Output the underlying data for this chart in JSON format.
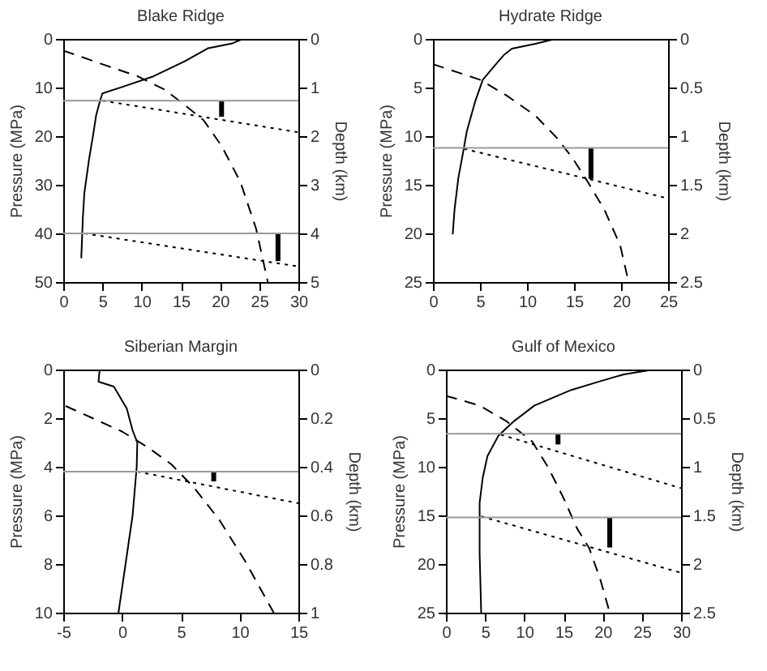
{
  "chart_data": [
    {
      "type": "line",
      "title": "Blake Ridge",
      "ylabel": "Pressure (MPa)",
      "y2label": "Depth (km)",
      "xlim": [
        0,
        30
      ],
      "xticks": [
        0,
        5,
        10,
        15,
        20,
        25,
        30
      ],
      "ylim": [
        50,
        0
      ],
      "yticks": [
        0,
        10,
        20,
        30,
        40,
        50
      ],
      "y2lim": [
        5,
        0
      ],
      "y2ticks": [
        0,
        1,
        2,
        3,
        4,
        5
      ],
      "grid": false,
      "series": [
        {
          "color": "#000000",
          "line_style": "solid",
          "x": [
            22.9,
            21.6,
            18.5,
            15.5,
            11.5,
            7.5,
            5,
            4.7,
            4.2,
            3.8,
            3.3,
            2.7,
            2.5,
            2.3
          ],
          "values": [
            0,
            0.9,
            1.9,
            4.6,
            7.7,
            9.9,
            11.2,
            12.7,
            15.7,
            19.9,
            24.7,
            31.6,
            36.9,
            45.1
          ]
        },
        {
          "color": "#000000",
          "line_style": "dashed",
          "x": [
            0,
            4.8,
            9.5,
            12.9,
            15.5,
            17.9,
            20.2,
            22.6,
            24.6,
            26.1
          ],
          "values": [
            2.4,
            5.1,
            7.7,
            10.4,
            13.6,
            16.7,
            22,
            29.4,
            39,
            50
          ]
        },
        {
          "color": "#000000",
          "line_style": "dotted",
          "x": [
            5,
            30
          ],
          "values": [
            12.7,
            19.2
          ]
        },
        {
          "color": "#000000",
          "line_style": "dotted",
          "x": [
            2.7,
            30
          ],
          "values": [
            40,
            46.8
          ]
        },
        {
          "color": "#000000",
          "line_style": "solid",
          "x": [
            20.2,
            20.2
          ],
          "values": [
            12.7,
            16
          ]
        },
        {
          "color": "#000000",
          "line_style": "solid",
          "x": [
            27.4,
            27.4
          ],
          "values": [
            40,
            45.7
          ]
        }
      ],
      "ref_lines": [
        {
          "axis": "y",
          "value": 12.7,
          "color": "#999999"
        },
        {
          "axis": "y",
          "value": 40,
          "color": "#999999"
        }
      ]
    },
    {
      "type": "line",
      "title": "Hydrate Ridge",
      "ylabel": "Pressure (MPa)",
      "y2label": "Depth (km)",
      "xlim": [
        0,
        25
      ],
      "xticks": [
        0,
        5,
        10,
        15,
        20,
        25
      ],
      "ylim": [
        25,
        0
      ],
      "yticks": [
        0,
        5,
        10,
        15,
        20,
        25
      ],
      "y2lim": [
        2.5,
        0
      ],
      "y2ticks": [
        0,
        0.5,
        1,
        1.5,
        2,
        2.5
      ],
      "grid": false,
      "series": [
        {
          "color": "#000000",
          "line_style": "solid",
          "x": [
            13,
            10.9,
            8.4,
            7.6,
            6.7,
            5.3,
            4.5,
            3.6,
            3.2,
            2.7,
            2.3,
            2.1
          ],
          "values": [
            0,
            0.5,
            1,
            1.6,
            2.6,
            4.2,
            6.4,
            9.5,
            11.7,
            14.3,
            17.5,
            20.1
          ]
        },
        {
          "color": "#000000",
          "line_style": "dashed",
          "x": [
            0,
            5,
            7.8,
            10.9,
            13.1,
            14.8,
            16.2,
            18.2,
            19.9,
            20.8
          ],
          "values": [
            2.6,
            4.2,
            5.8,
            7.9,
            10.1,
            12.2,
            14.3,
            17.5,
            21.2,
            25
          ]
        },
        {
          "color": "#000000",
          "line_style": "dotted",
          "x": [
            3.3,
            25
          ],
          "values": [
            11.3,
            16.4
          ]
        },
        {
          "color": "#000000",
          "line_style": "solid",
          "x": [
            16.8,
            16.8
          ],
          "values": [
            11.2,
            14.4
          ]
        }
      ],
      "ref_lines": [
        {
          "axis": "y",
          "value": 11.2,
          "color": "#999999"
        }
      ]
    },
    {
      "type": "line",
      "title": "Siberian Margin",
      "ylabel": "Pressure (MPa)",
      "y2label": "Depth (km)",
      "xlim": [
        -5,
        15
      ],
      "xticks": [
        -5,
        0,
        5,
        10,
        15
      ],
      "ylim": [
        10,
        0
      ],
      "yticks": [
        0,
        2,
        4,
        6,
        8,
        10
      ],
      "y2lim": [
        1,
        0
      ],
      "y2ticks": [
        0,
        0.2,
        0.4,
        0.6,
        0.8,
        1
      ],
      "grid": false,
      "series": [
        {
          "color": "#000000",
          "line_style": "solid",
          "x": [
            -1.9,
            -2,
            -0.7,
            0.4,
            0.9,
            1.3,
            1.25,
            0.9,
            0.3,
            -0.3
          ],
          "values": [
            0,
            0.5,
            0.7,
            1.6,
            2.5,
            3,
            4,
            6,
            8,
            10
          ]
        },
        {
          "color": "#000000",
          "line_style": "dashed",
          "x": [
            -4.8,
            -2.5,
            0,
            2.2,
            4.2,
            6.2,
            8.3,
            10.5,
            12.9
          ],
          "values": [
            1.5,
            2,
            2.55,
            3.2,
            3.9,
            4.9,
            6.2,
            7.9,
            10
          ]
        },
        {
          "color": "#000000",
          "line_style": "dotted",
          "x": [
            1.3,
            15
          ],
          "values": [
            4.2,
            5.5
          ]
        },
        {
          "color": "#000000",
          "line_style": "solid",
          "x": [
            7.8,
            7.8
          ],
          "values": [
            4.2,
            4.6
          ]
        }
      ],
      "ref_lines": [
        {
          "axis": "y",
          "value": 4.2,
          "color": "#999999"
        }
      ]
    },
    {
      "type": "line",
      "title": "Gulf of Mexico",
      "ylabel": "Pressure (MPa)",
      "y2label": "Depth (km)",
      "xlim": [
        0,
        30
      ],
      "xticks": [
        0,
        5,
        10,
        15,
        20,
        25,
        30
      ],
      "ylim": [
        25,
        0
      ],
      "yticks": [
        0,
        5,
        10,
        15,
        20,
        25
      ],
      "y2lim": [
        2.5,
        0
      ],
      "y2ticks": [
        0,
        0.5,
        1,
        1.5,
        2,
        2.5
      ],
      "grid": false,
      "series": [
        {
          "color": "#000000",
          "line_style": "solid",
          "x": [
            26.5,
            22.7,
            19.7,
            16,
            11.3,
            8.7,
            6.7,
            5.3,
            4.7,
            4.3,
            4.3,
            4.5
          ],
          "values": [
            0,
            0.5,
            1.2,
            2.1,
            3.7,
            5.3,
            6.8,
            8.9,
            11.1,
            13.7,
            18.9,
            25
          ]
        },
        {
          "color": "#000000",
          "line_style": "dashed",
          "x": [
            0,
            4.3,
            7.7,
            11,
            13,
            15,
            16.7,
            18.3,
            19.7,
            20.9
          ],
          "values": [
            2.7,
            3.7,
            5.3,
            7.4,
            10,
            13.2,
            16.3,
            18.4,
            21.6,
            25
          ]
        },
        {
          "color": "#000000",
          "line_style": "dotted",
          "x": [
            7,
            30
          ],
          "values": [
            6.7,
            12.2
          ]
        },
        {
          "color": "#000000",
          "line_style": "dotted",
          "x": [
            4.5,
            30
          ],
          "values": [
            15.1,
            20.9
          ]
        },
        {
          "color": "#000000",
          "line_style": "solid",
          "x": [
            14.3,
            14.3
          ],
          "values": [
            6.6,
            7.7
          ]
        },
        {
          "color": "#000000",
          "line_style": "solid",
          "x": [
            20.9,
            20.9
          ],
          "values": [
            15.2,
            18.3
          ]
        }
      ],
      "ref_lines": [
        {
          "axis": "y",
          "value": 6.6,
          "color": "#999999"
        },
        {
          "axis": "y",
          "value": 15.2,
          "color": "#999999"
        }
      ]
    }
  ]
}
